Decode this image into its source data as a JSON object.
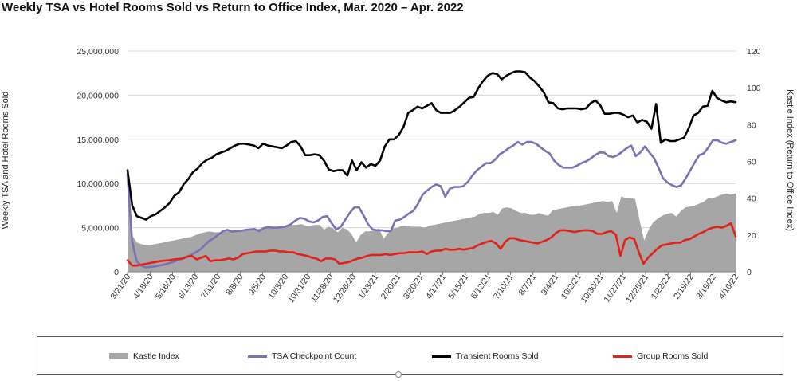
{
  "chart_data": {
    "type": "line",
    "title": "Weekly TSA vs Hotel Rooms Sold vs Return to Office Index, Mar. 2020 – Apr. 2022",
    "ylabel": "Weekly TSA and Hotel Rooms Sold",
    "y2label": "Kastle Index (Return to Office Index)",
    "ylim": [
      0,
      25000000
    ],
    "y2lim": [
      0,
      120
    ],
    "yticks": [
      "0",
      "5,000,000",
      "10,000,000",
      "15,000,000",
      "20,000,000",
      "25,000,000"
    ],
    "y2ticks": [
      "0",
      "20",
      "40",
      "60",
      "80",
      "100",
      "120"
    ],
    "xticks": [
      "3/21/20",
      "4/18/20",
      "5/16/20",
      "6/13/20",
      "7/11/20",
      "8/8/20",
      "9/5/20",
      "10/3/20",
      "10/31/20",
      "11/28/20",
      "12/26/20",
      "1/23/21",
      "2/20/21",
      "3/20/21",
      "4/17/21",
      "5/15/21",
      "6/12/21",
      "7/10/21",
      "8/7/21",
      "9/4/21",
      "10/2/21",
      "10/30/21",
      "11/27/21",
      "12/25/21",
      "1/22/22",
      "2/19/22",
      "3/19/22",
      "4/16/22"
    ],
    "grid": true,
    "legend_position": "bottom",
    "series": [
      {
        "name": "Kastle Index",
        "kind": "area",
        "axis": "right",
        "color": "#a6a6a6",
        "values": [
          50,
          20,
          16,
          15,
          14.5,
          14.5,
          15,
          15.5,
          16,
          16.5,
          17,
          17.5,
          18,
          18.5,
          19,
          20,
          21,
          21.5,
          22,
          21.5,
          21.5,
          22,
          22,
          22,
          22.5,
          22.5,
          23,
          23,
          23,
          23.5,
          24,
          24,
          24,
          24.5,
          24.5,
          25,
          25.5,
          25.5,
          26,
          25,
          25,
          25.5,
          25.5,
          23,
          24.5,
          23.5,
          21.5,
          24,
          23,
          20.5,
          16,
          20,
          22,
          22,
          22.5,
          23.5,
          18,
          21,
          23.5,
          24,
          25,
          25,
          24.5,
          24.5,
          24.5,
          24,
          25,
          25.5,
          26,
          26.5,
          27,
          27.5,
          28,
          28.5,
          29,
          29.5,
          30,
          31.5,
          32,
          32,
          32.5,
          31,
          34.5,
          35,
          34.5,
          33,
          32,
          32,
          31,
          31,
          32,
          31,
          30.5,
          33.5,
          34,
          34.5,
          35,
          35.5,
          36,
          36,
          36.5,
          37,
          37.5,
          38,
          38.5,
          38,
          38.5,
          32,
          41,
          40,
          40,
          39.5,
          28,
          17,
          23,
          27,
          29,
          30.5,
          31.5,
          32,
          30,
          33,
          35,
          35.5,
          36,
          37,
          38,
          40,
          40,
          41,
          42,
          42.5,
          42,
          42.5
        ]
      },
      {
        "name": "TSA Checkpoint Count",
        "kind": "line",
        "axis": "left",
        "color": "#7b72b5",
        "values": [
          11000000,
          3500000,
          1200000,
          700000,
          500000,
          550000,
          600000,
          700000,
          800000,
          950000,
          1100000,
          1300000,
          1500000,
          1700000,
          1900000,
          2200000,
          2500000,
          3000000,
          3500000,
          3800000,
          4200000,
          4600000,
          4750000,
          4550000,
          4600000,
          4650000,
          4750000,
          4800000,
          4850000,
          4600000,
          4950000,
          5050000,
          5000000,
          5000000,
          5050000,
          5150000,
          5400000,
          5800000,
          6100000,
          6000000,
          5700000,
          5600000,
          5800000,
          6200000,
          6300000,
          5500000,
          4800000,
          5100000,
          5900000,
          6700000,
          7300000,
          7300000,
          6400000,
          5400000,
          4800000,
          4700000,
          4700000,
          4600000,
          4600000,
          5800000,
          5900000,
          6200000,
          6600000,
          6900000,
          7700000,
          8700000,
          9200000,
          9600000,
          9900000,
          9700000,
          8500000,
          9400000,
          9600000,
          9600000,
          9700000,
          10200000,
          10900000,
          11500000,
          11900000,
          12300000,
          12300000,
          12700000,
          13300000,
          13600000,
          14000000,
          14300000,
          14700000,
          14400000,
          14700000,
          14700000,
          14500000,
          14100000,
          13700000,
          13400000,
          12600000,
          12100000,
          11800000,
          11800000,
          11800000,
          12000000,
          12300000,
          12500000,
          12800000,
          13200000,
          13500000,
          13500000,
          13100000,
          13000000,
          13200000,
          13600000,
          14000000,
          14300000,
          13100000,
          13500000,
          14200000,
          13500000,
          12900000,
          11800000,
          10600000,
          10100000,
          9800000,
          9600000,
          9800000,
          10600000,
          11500000,
          12400000,
          13200000,
          13400000,
          14100000,
          14900000,
          14900000,
          14600000,
          14500000,
          14700000,
          14900000
        ]
      },
      {
        "name": "Transient Rooms Sold",
        "kind": "line",
        "axis": "left",
        "color": "#000000",
        "values": [
          11500000,
          7500000,
          6300000,
          6100000,
          5900000,
          6300000,
          6500000,
          6900000,
          7300000,
          7800000,
          8600000,
          9000000,
          9900000,
          10500000,
          11300000,
          11700000,
          12300000,
          12700000,
          12900000,
          13300000,
          13500000,
          13700000,
          14000000,
          14300000,
          14500000,
          14500000,
          14400000,
          14300000,
          14000000,
          14500000,
          14300000,
          14200000,
          14100000,
          14000000,
          14300000,
          14700000,
          14800000,
          14200000,
          13200000,
          13200000,
          13300000,
          13200000,
          12600000,
          11600000,
          11400000,
          11500000,
          11500000,
          10900000,
          12600000,
          11500000,
          12400000,
          11800000,
          12200000,
          12000000,
          12600000,
          14200000,
          15000000,
          15000000,
          15500000,
          16400000,
          18000000,
          18300000,
          18700000,
          18500000,
          18800000,
          19100000,
          18300000,
          18000000,
          18000000,
          18000000,
          18300000,
          18700000,
          19200000,
          19700000,
          19800000,
          20800000,
          21600000,
          22200000,
          22500000,
          22400000,
          21800000,
          22200000,
          22500000,
          22700000,
          22700000,
          22600000,
          22000000,
          21600000,
          21000000,
          20300000,
          19200000,
          19100000,
          18500000,
          18400000,
          18500000,
          18500000,
          18500000,
          18400000,
          18500000,
          19100000,
          19400000,
          18900000,
          17900000,
          17900000,
          18000000,
          18000000,
          17800000,
          17500000,
          17700000,
          16900000,
          17200000,
          17000000,
          16200000,
          19000000,
          14600000,
          15000000,
          14800000,
          14800000,
          15000000,
          15200000,
          16300000,
          17700000,
          18000000,
          18700000,
          18800000,
          20500000,
          19700000,
          19400000,
          19200000,
          19300000,
          19200000
        ]
      },
      {
        "name": "Group Rooms Sold",
        "kind": "line",
        "axis": "left",
        "color": "#e32119",
        "values": [
          1300000,
          700000,
          700000,
          800000,
          900000,
          1000000,
          1100000,
          1200000,
          1250000,
          1300000,
          1400000,
          1450000,
          1500000,
          1700000,
          1800000,
          1400000,
          1600000,
          1800000,
          1200000,
          1300000,
          1300000,
          1400000,
          1500000,
          1400000,
          1600000,
          2000000,
          2100000,
          2200000,
          2300000,
          2300000,
          2300000,
          2400000,
          2400000,
          2300000,
          2300000,
          2200000,
          2200000,
          2000000,
          1900000,
          1800000,
          1600000,
          1500000,
          1200000,
          1500000,
          1500000,
          1400000,
          900000,
          1000000,
          1100000,
          1300000,
          1500000,
          1600000,
          1800000,
          1900000,
          1900000,
          1900000,
          2000000,
          1900000,
          2000000,
          2100000,
          2100000,
          2200000,
          2200000,
          2200000,
          2300000,
          2000000,
          2300000,
          2400000,
          2400000,
          2600000,
          2500000,
          2500000,
          2600000,
          2500000,
          2600000,
          2700000,
          3000000,
          3200000,
          3400000,
          3500000,
          3200000,
          2600000,
          3400000,
          3800000,
          3800000,
          3600000,
          3500000,
          3400000,
          3300000,
          3200000,
          3400000,
          3600000,
          3900000,
          4400000,
          4700000,
          4700000,
          4600000,
          4500000,
          4600000,
          4700000,
          4700000,
          4600000,
          4300000,
          4300000,
          4500000,
          4600000,
          4200000,
          1800000,
          3600000,
          3900000,
          3700000,
          2200000,
          900000,
          1600000,
          2100000,
          2600000,
          3000000,
          3100000,
          3200000,
          3300000,
          3300000,
          3600000,
          3700000,
          4000000,
          4300000,
          4500000,
          4800000,
          5000000,
          5100000,
          5000000,
          5200000,
          5500000,
          4000000
        ]
      }
    ]
  }
}
